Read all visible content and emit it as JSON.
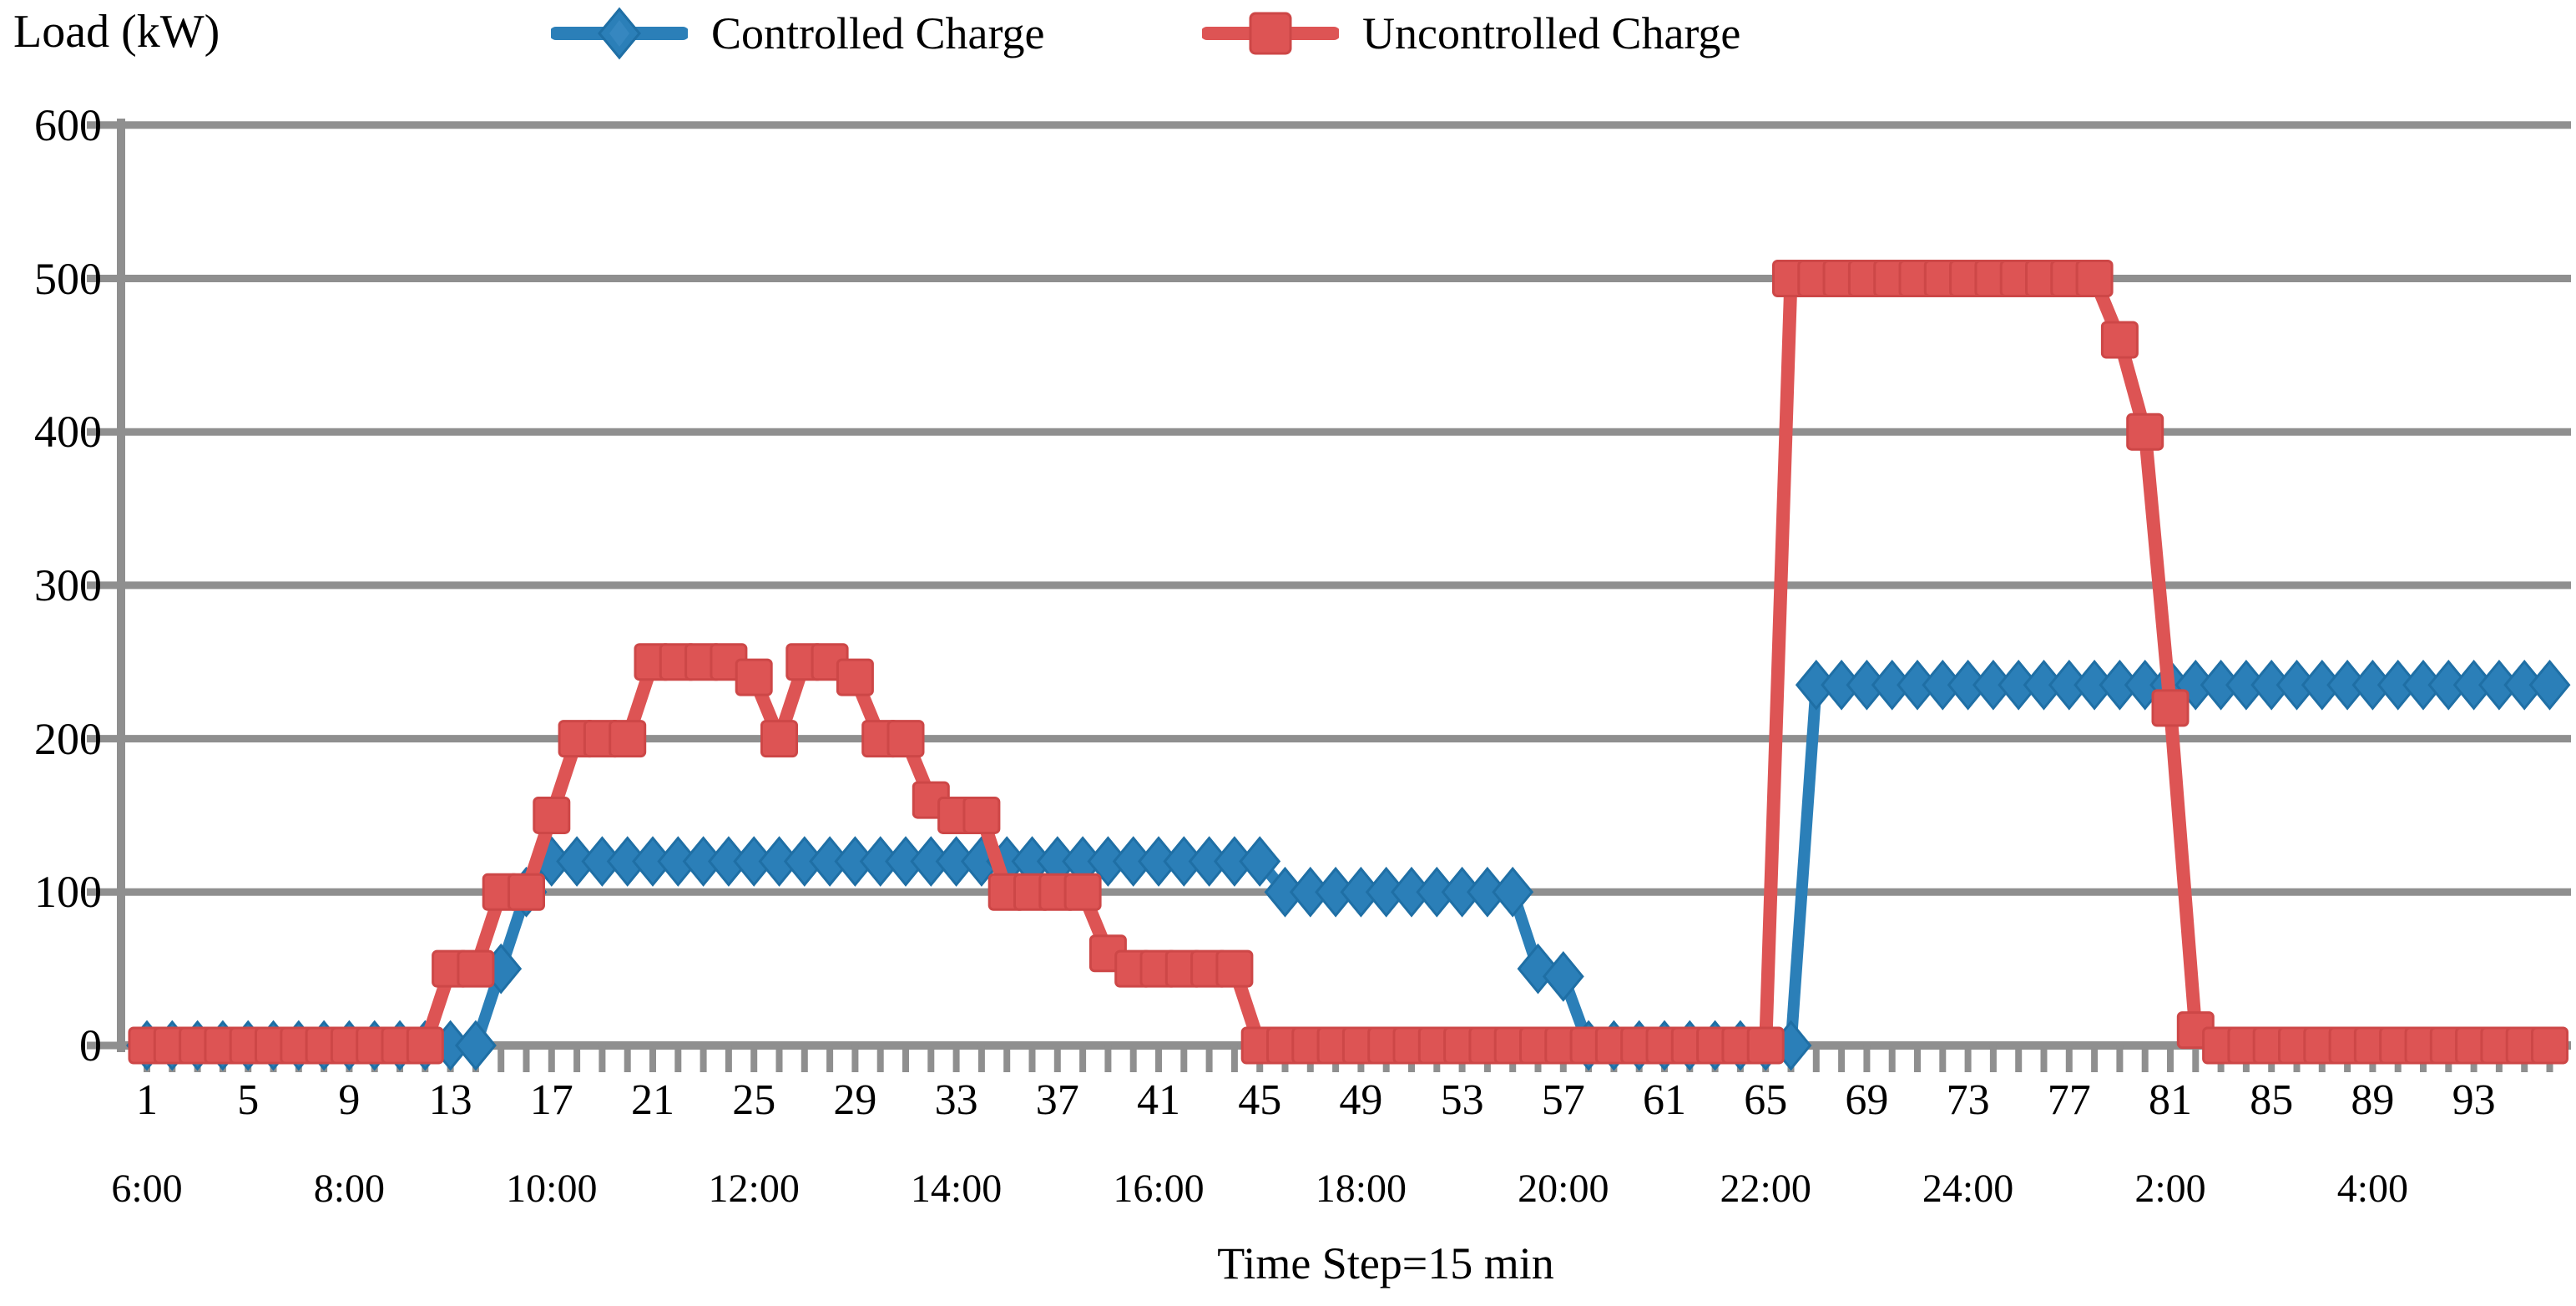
{
  "chart_title": "Load (kW)",
  "x_axis_title": "Time Step=15 min",
  "legend": {
    "items": [
      {
        "label": "Controlled Charge",
        "marker": "diamond",
        "color": "#2b7fb8",
        "stroke": "#1f6fa5"
      },
      {
        "label": "Uncontrolled Charge",
        "marker": "square",
        "color": "#dd5454",
        "stroke": "#cd4747"
      }
    ]
  },
  "chart_data": {
    "type": "line",
    "title": "Load (kW)",
    "xlabel": "Time Step=15 min",
    "ylabel": "Load (kW)",
    "ylim": [
      0,
      600
    ],
    "yticks": [
      0,
      100,
      200,
      300,
      400,
      500,
      600
    ],
    "x_range": [
      1,
      96
    ],
    "xtick_steps": [
      1,
      5,
      9,
      13,
      17,
      21,
      25,
      29,
      33,
      37,
      41,
      45,
      49,
      53,
      57,
      61,
      65,
      69,
      73,
      77,
      81,
      85,
      89,
      93
    ],
    "time_axis": {
      "labels": [
        "6:00",
        "8:00",
        "10:00",
        "12:00",
        "14:00",
        "16:00",
        "18:00",
        "20:00",
        "22:00",
        "24:00",
        "2:00",
        "4:00"
      ],
      "steps": [
        1,
        9,
        17,
        25,
        33,
        41,
        49,
        57,
        65,
        73,
        81,
        89
      ]
    },
    "grid": true,
    "legend_position": "top",
    "axis_color": "#8f8f8f",
    "grid_color": "#8f8f8f",
    "series": [
      {
        "name": "Controlled Charge",
        "marker": "diamond",
        "color": "#2b7fb8",
        "stroke": "#1f6fa5",
        "values": [
          0,
          0,
          0,
          0,
          0,
          0,
          0,
          0,
          0,
          0,
          0,
          0,
          0,
          0,
          50,
          100,
          120,
          120,
          120,
          120,
          120,
          120,
          120,
          120,
          120,
          120,
          120,
          120,
          120,
          120,
          120,
          120,
          120,
          120,
          120,
          120,
          120,
          120,
          120,
          120,
          120,
          120,
          120,
          120,
          120,
          100,
          100,
          100,
          100,
          100,
          100,
          100,
          100,
          100,
          100,
          50,
          45,
          0,
          0,
          0,
          0,
          0,
          0,
          0,
          0,
          0,
          235,
          235,
          235,
          235,
          235,
          235,
          235,
          235,
          235,
          235,
          235,
          235,
          235,
          235,
          235,
          235,
          235,
          235,
          235,
          235,
          235,
          235,
          235,
          235,
          235,
          235,
          235,
          235,
          235,
          235
        ]
      },
      {
        "name": "Uncontrolled Charge",
        "marker": "square",
        "color": "#dd5454",
        "stroke": "#cd4747",
        "values": [
          0,
          0,
          0,
          0,
          0,
          0,
          0,
          0,
          0,
          0,
          0,
          0,
          50,
          50,
          100,
          100,
          150,
          200,
          200,
          200,
          250,
          250,
          250,
          250,
          240,
          200,
          250,
          250,
          240,
          200,
          200,
          160,
          150,
          150,
          100,
          100,
          100,
          100,
          60,
          50,
          50,
          50,
          50,
          50,
          0,
          0,
          0,
          0,
          0,
          0,
          0,
          0,
          0,
          0,
          0,
          0,
          0,
          0,
          0,
          0,
          0,
          0,
          0,
          0,
          0,
          500,
          500,
          500,
          500,
          500,
          500,
          500,
          500,
          500,
          500,
          500,
          500,
          500,
          460,
          400,
          220,
          10,
          0,
          0,
          0,
          0,
          0,
          0,
          0,
          0,
          0,
          0,
          0,
          0,
          0,
          0
        ]
      }
    ]
  }
}
